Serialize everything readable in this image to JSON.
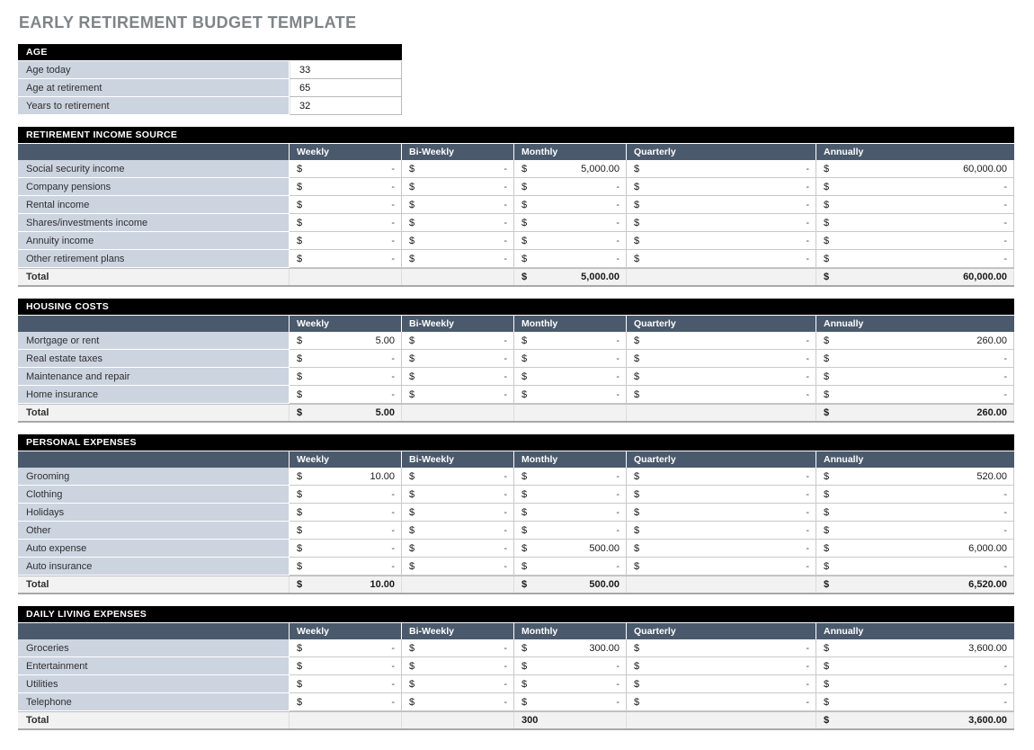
{
  "title": "EARLY RETIREMENT BUDGET TEMPLATE",
  "currency": "$",
  "age": {
    "header": "AGE",
    "rows": [
      {
        "label": "Age today",
        "value": "33"
      },
      {
        "label": "Age at retirement",
        "value": "65"
      },
      {
        "label": "Years to retirement",
        "value": "32"
      }
    ]
  },
  "columns": [
    "Weekly",
    "Bi-Weekly",
    "Monthly",
    "Quarterly",
    "Annually"
  ],
  "sections": [
    {
      "header": "RETIREMENT INCOME SOURCE",
      "rows": [
        {
          "label": "Social security income",
          "cells": [
            "-",
            "-",
            "5,000.00",
            "-",
            "60,000.00"
          ]
        },
        {
          "label": "Company pensions",
          "cells": [
            "-",
            "-",
            "-",
            "-",
            "-"
          ]
        },
        {
          "label": "Rental income",
          "cells": [
            "-",
            "-",
            "-",
            "-",
            "-"
          ]
        },
        {
          "label": "Shares/investments income",
          "cells": [
            "-",
            "-",
            "-",
            "-",
            "-"
          ]
        },
        {
          "label": "Annuity income",
          "cells": [
            "-",
            "-",
            "-",
            "-",
            "-"
          ]
        },
        {
          "label": "Other retirement plans",
          "cells": [
            "-",
            "-",
            "-",
            "-",
            "-"
          ]
        }
      ],
      "total": {
        "label": "Total",
        "cells": [
          "",
          "",
          "5,000.00",
          "",
          "60,000.00"
        ]
      }
    },
    {
      "header": "HOUSING COSTS",
      "rows": [
        {
          "label": "Mortgage or rent",
          "cells": [
            "5.00",
            "-",
            "-",
            "-",
            "260.00"
          ]
        },
        {
          "label": "Real estate taxes",
          "cells": [
            "-",
            "-",
            "-",
            "-",
            "-"
          ]
        },
        {
          "label": "Maintenance and repair",
          "cells": [
            "-",
            "-",
            "-",
            "-",
            "-"
          ]
        },
        {
          "label": "Home insurance",
          "cells": [
            "-",
            "-",
            "-",
            "-",
            "-"
          ]
        }
      ],
      "total": {
        "label": "Total",
        "cells": [
          "5.00",
          "",
          "",
          "",
          "260.00"
        ]
      }
    },
    {
      "header": "PERSONAL EXPENSES",
      "rows": [
        {
          "label": "Grooming",
          "cells": [
            "10.00",
            "-",
            "-",
            "-",
            "520.00"
          ]
        },
        {
          "label": "Clothing",
          "cells": [
            "-",
            "-",
            "-",
            "-",
            "-"
          ]
        },
        {
          "label": "Holidays",
          "cells": [
            "-",
            "-",
            "-",
            "-",
            "-"
          ]
        },
        {
          "label": "Other",
          "cells": [
            "-",
            "-",
            "-",
            "-",
            "-"
          ]
        },
        {
          "label": "Auto expense",
          "cells": [
            "-",
            "-",
            "500.00",
            "-",
            "6,000.00"
          ]
        },
        {
          "label": "Auto insurance",
          "cells": [
            "-",
            "-",
            "-",
            "-",
            "-"
          ]
        }
      ],
      "total": {
        "label": "Total",
        "cells": [
          "10.00",
          "",
          "500.00",
          "",
          "6,520.00"
        ]
      }
    },
    {
      "header": "DAILY LIVING EXPENSES",
      "rows": [
        {
          "label": "Groceries",
          "cells": [
            "-",
            "-",
            "300.00",
            "-",
            "3,600.00"
          ]
        },
        {
          "label": "Entertainment",
          "cells": [
            "-",
            "-",
            "-",
            "-",
            "-"
          ]
        },
        {
          "label": "Utilities",
          "cells": [
            "-",
            "-",
            "-",
            "-",
            "-"
          ]
        },
        {
          "label": "Telephone",
          "cells": [
            "-",
            "-",
            "-",
            "-",
            "-"
          ]
        }
      ],
      "total": {
        "label": "Total",
        "cells": [
          "",
          "",
          {
            "text": "300",
            "plain": true
          },
          "",
          "3,600.00"
        ]
      }
    }
  ],
  "colors": {
    "section_header_bg": "#000000",
    "column_header_bg": "#4A5A6C",
    "label_cell_bg": "#CCD4E0",
    "total_row_bg": "#F2F2F2",
    "title_color": "#7F8487"
  }
}
